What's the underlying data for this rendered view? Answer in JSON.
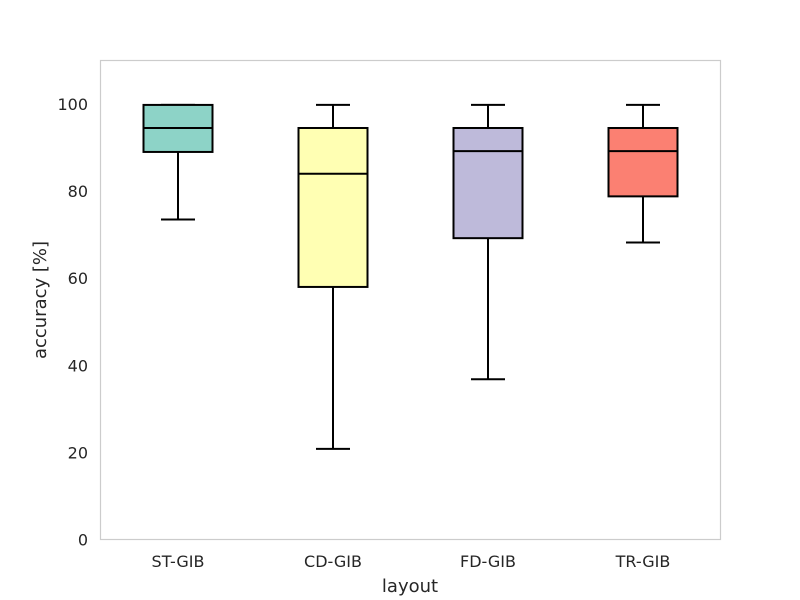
{
  "chart_data": {
    "type": "box",
    "title": "",
    "xlabel": "layout",
    "ylabel": "accuracy [%]",
    "ylim": [
      0,
      110
    ],
    "yticks": [
      0,
      20,
      40,
      60,
      80,
      100
    ],
    "ytick_labels": [
      "0",
      "20",
      "40",
      "60",
      "80",
      "100"
    ],
    "grid": false,
    "categories": [
      "ST-GIB",
      "CD-GIB",
      "FD-GIB",
      "TR-GIB"
    ],
    "boxes": [
      {
        "name": "ST-GIB",
        "whisker_low": 73.5,
        "q1": 89.0,
        "median": 94.5,
        "q3": 99.8,
        "whisker_high": 99.8,
        "color": "#8dd3c7"
      },
      {
        "name": "CD-GIB",
        "whisker_low": 20.8,
        "q1": 58.0,
        "median": 84.0,
        "q3": 94.5,
        "whisker_high": 99.8,
        "color": "#ffffb3"
      },
      {
        "name": "FD-GIB",
        "whisker_low": 36.8,
        "q1": 69.2,
        "median": 89.2,
        "q3": 94.5,
        "whisker_high": 99.8,
        "color": "#bebada"
      },
      {
        "name": "TR-GIB",
        "whisker_low": 68.2,
        "q1": 78.8,
        "median": 89.2,
        "q3": 94.5,
        "whisker_high": 99.8,
        "color": "#fb8072"
      }
    ]
  }
}
